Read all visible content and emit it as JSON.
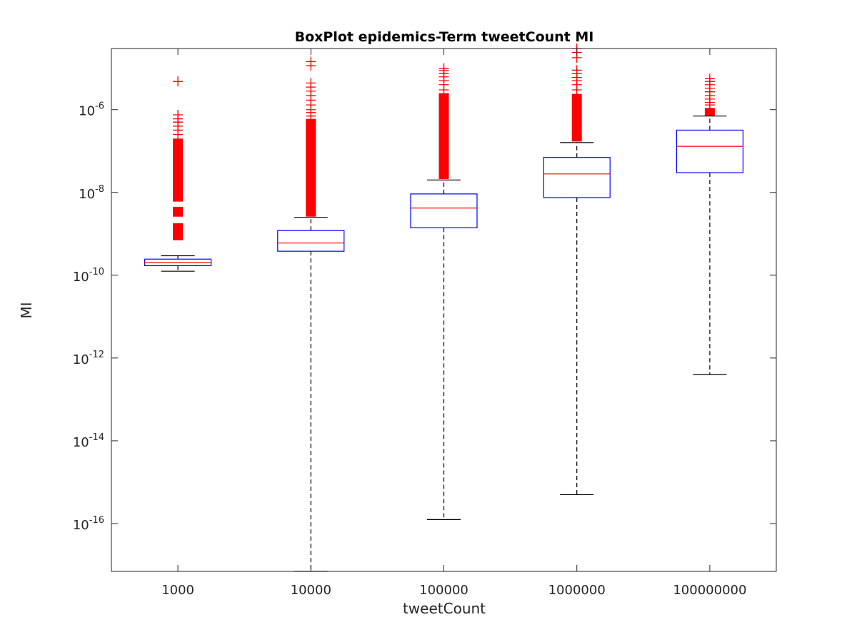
{
  "chart_data": {
    "type": "boxplot",
    "title": "BoxPlot epidemics-Term tweetCount MI",
    "xlabel": "tweetCount",
    "ylabel": "MI",
    "yscale": "log",
    "ylim": [
      7e-18,
      3e-05
    ],
    "yticks": [
      {
        "value": 1e-16,
        "base": "10",
        "exp": "-16"
      },
      {
        "value": 1e-14,
        "base": "10",
        "exp": "-14"
      },
      {
        "value": 1e-12,
        "base": "10",
        "exp": "-12"
      },
      {
        "value": 1e-10,
        "base": "10",
        "exp": "-10"
      },
      {
        "value": 1e-08,
        "base": "10",
        "exp": "-8"
      },
      {
        "value": 1e-06,
        "base": "10",
        "exp": "-6"
      }
    ],
    "categories": [
      "1000",
      "10000",
      "100000",
      "1000000",
      "100000000"
    ],
    "colors": {
      "box": "#0000ff",
      "median": "#ff0000",
      "whisker": "#000000",
      "outlier": "#ff0000"
    },
    "boxes": [
      {
        "category": "1000",
        "whisker_low": 1.25e-10,
        "q1": 1.7e-10,
        "median": 2e-10,
        "q3": 2.45e-10,
        "whisker_high": 2.95e-10,
        "outlier_bands": [
          [
            7e-10,
            1.8e-09
          ],
          [
            2.6e-09,
            4.5e-09
          ],
          [
            6e-09,
            2e-07
          ]
        ],
        "outliers": [
          2.5e-07,
          3.2e-07,
          4e-07,
          5e-07,
          6e-07,
          7.5e-07,
          4.8e-06
        ]
      },
      {
        "category": "10000",
        "whisker_low": 7e-18,
        "q1": 3.8e-10,
        "median": 6e-10,
        "q3": 1.2e-09,
        "whisker_high": 2.5e-09,
        "outlier_bands": [
          [
            2.6e-09,
            6e-07
          ]
        ],
        "outliers": [
          7e-07,
          8.5e-07,
          1e-06,
          1.3e-06,
          1.7e-06,
          2.2e-06,
          2.8e-06,
          3.5e-06,
          4.4e-06,
          1.15e-05,
          1.45e-05
        ]
      },
      {
        "category": "100000",
        "whisker_low": 1.25e-16,
        "q1": 1.4e-09,
        "median": 4.2e-09,
        "q3": 9.2e-09,
        "whisker_high": 2e-08,
        "outlier_bands": [
          [
            2.1e-08,
            2.5e-06
          ]
        ],
        "outliers": [
          3e-06,
          4e-06,
          5e-06,
          6.2e-06,
          7.5e-06,
          8.8e-06,
          1e-05
        ]
      },
      {
        "category": "1000000",
        "whisker_low": 5e-16,
        "q1": 7.5e-09,
        "median": 2.8e-08,
        "q3": 7e-08,
        "whisker_high": 1.6e-07,
        "outlier_bands": [
          [
            1.7e-07,
            2.4e-06
          ]
        ],
        "outliers": [
          3e-06,
          4e-06,
          5e-06,
          6e-06,
          7.5e-06,
          9e-06,
          1.8e-05,
          2.4e-05,
          3e-05
        ]
      },
      {
        "category": "100000000",
        "whisker_low": 4e-13,
        "q1": 3e-08,
        "median": 1.3e-07,
        "q3": 3.2e-07,
        "whisker_high": 7e-07,
        "outlier_bands": [
          [
            7.2e-07,
            1.1e-06
          ]
        ],
        "outliers": [
          1.3e-06,
          1.5e-06,
          1.8e-06,
          2.2e-06,
          2.7e-06,
          3.3e-06,
          4e-06,
          4.8e-06,
          5.6e-06
        ]
      }
    ]
  }
}
